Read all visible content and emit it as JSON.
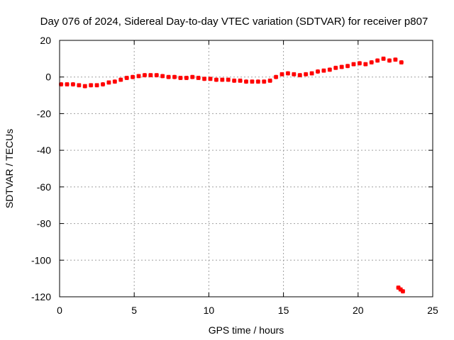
{
  "chart_data": {
    "type": "scatter",
    "title": "Day 076 of 2024, Sidereal Day-to-day VTEC variation (SDTVAR) for receiver p807",
    "xlabel": "GPS time / hours",
    "ylabel": "SDTVAR / TECUs",
    "xlim": [
      0,
      25
    ],
    "ylim": [
      -120,
      20
    ],
    "xticks": [
      0,
      5,
      10,
      15,
      20,
      25
    ],
    "yticks": [
      20,
      0,
      -20,
      -40,
      -60,
      -80,
      -100,
      -120
    ],
    "grid": true,
    "marker_color": "#ff0000",
    "series": [
      {
        "name": "SDTVAR",
        "x": [
          0.1,
          0.5,
          0.9,
          1.3,
          1.7,
          2.1,
          2.5,
          2.9,
          3.3,
          3.7,
          4.1,
          4.5,
          4.9,
          5.3,
          5.7,
          6.1,
          6.5,
          6.9,
          7.3,
          7.7,
          8.1,
          8.5,
          8.9,
          9.3,
          9.7,
          10.1,
          10.5,
          10.9,
          11.3,
          11.7,
          12.1,
          12.5,
          12.9,
          13.3,
          13.7,
          14.1,
          14.5,
          14.9,
          15.3,
          15.7,
          16.1,
          16.5,
          16.9,
          17.3,
          17.7,
          18.1,
          18.5,
          18.9,
          19.3,
          19.7,
          20.1,
          20.5,
          20.9,
          21.3,
          21.7,
          22.1,
          22.5,
          22.9,
          22.7,
          22.85,
          23.0
        ],
        "y": [
          -4,
          -4,
          -4,
          -4.5,
          -5,
          -4.5,
          -4.5,
          -4,
          -3,
          -2.5,
          -1.5,
          -0.5,
          0,
          0.5,
          1,
          1,
          1,
          0.5,
          0,
          0,
          -0.5,
          -0.5,
          0,
          -0.5,
          -1,
          -1,
          -1.5,
          -1.5,
          -1.5,
          -2,
          -2,
          -2.5,
          -2.5,
          -2.5,
          -2.5,
          -2,
          0,
          1.5,
          2,
          1.5,
          1,
          1.5,
          2,
          3,
          3.5,
          4,
          5,
          5.5,
          6,
          7,
          7.5,
          7,
          8,
          9,
          10,
          9,
          9.5,
          8,
          -115,
          -116,
          -117
        ]
      }
    ]
  }
}
